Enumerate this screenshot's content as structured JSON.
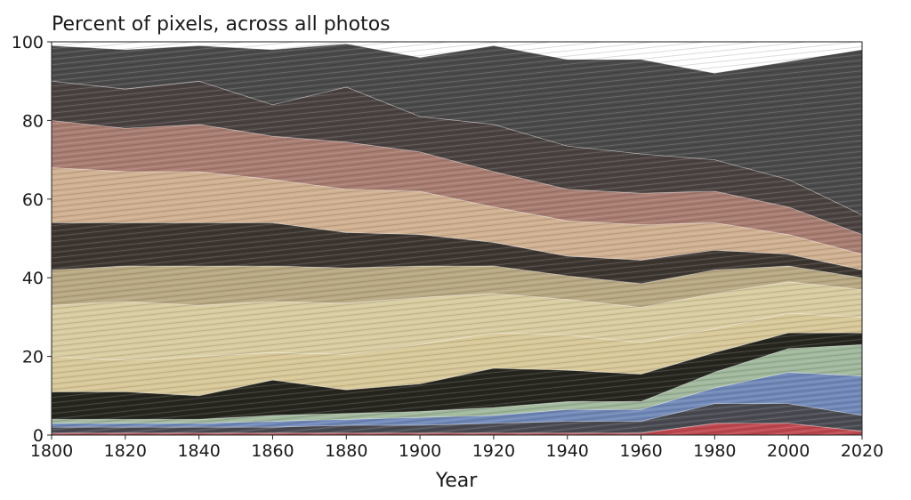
{
  "chart_data": {
    "type": "area",
    "title": "Percent of pixels, across all photos",
    "xlabel": "Year",
    "ylabel": "",
    "xlim": [
      1800,
      2020
    ],
    "ylim": [
      0,
      100
    ],
    "x": [
      1800,
      1820,
      1840,
      1860,
      1880,
      1900,
      1920,
      1940,
      1960,
      1980,
      2000,
      2020
    ],
    "xticks": [
      "1800",
      "1820",
      "1840",
      "1860",
      "1880",
      "1900",
      "1920",
      "1940",
      "1960",
      "1980",
      "2000",
      "2020"
    ],
    "yticks": [
      "0",
      "20",
      "40",
      "60",
      "80",
      "100"
    ],
    "grid": false,
    "legend": "none",
    "series": [
      {
        "color": "#c04850",
        "values": [
          0.5,
          0.5,
          0.5,
          0.5,
          0.5,
          0.5,
          0.5,
          0.5,
          0.5,
          3,
          3,
          1
        ]
      },
      {
        "color": "#4a4a52",
        "values": [
          1.5,
          1.5,
          1.5,
          1.5,
          2,
          2,
          2.5,
          3,
          3,
          5,
          5,
          4
        ]
      },
      {
        "color": "#7088b8",
        "values": [
          1,
          1,
          1,
          1.5,
          1.5,
          2,
          2,
          3,
          3,
          4,
          8,
          10
        ]
      },
      {
        "color": "#a0b89c",
        "values": [
          1,
          1,
          1,
          1.5,
          1.5,
          1.5,
          2,
          2,
          2,
          4,
          6,
          8
        ]
      },
      {
        "color": "#26261f",
        "values": [
          7,
          7,
          6,
          9,
          6,
          7,
          10,
          8,
          7,
          5,
          4,
          3
        ]
      },
      {
        "color": "#d8c898",
        "values": [
          9,
          8,
          10,
          7,
          9,
          10,
          9,
          9,
          8,
          6,
          5,
          4
        ]
      },
      {
        "color": "#d8cca0",
        "values": [
          13,
          15,
          13,
          13,
          13,
          12,
          10,
          9,
          9,
          9,
          8,
          7
        ]
      },
      {
        "color": "#b8a882",
        "values": [
          9,
          9,
          10,
          9,
          9,
          8,
          7,
          6,
          6,
          6,
          4,
          3
        ]
      },
      {
        "color": "#3c3530",
        "values": [
          12,
          11,
          11,
          11,
          9,
          8,
          6,
          5,
          6,
          5,
          3,
          2
        ]
      },
      {
        "color": "#d0b090",
        "values": [
          14,
          13,
          13,
          11,
          11,
          11,
          9,
          9,
          9,
          7,
          5,
          4
        ]
      },
      {
        "color": "#a87c70",
        "values": [
          12,
          11,
          12,
          11,
          12,
          10,
          9,
          8,
          8,
          8,
          7,
          5
        ]
      },
      {
        "color": "#4a4240",
        "values": [
          10,
          10,
          11,
          8,
          14,
          9,
          12,
          11,
          10,
          8,
          7,
          5
        ]
      },
      {
        "color": "#4a4a4a",
        "values": [
          9,
          10,
          9,
          14,
          11,
          15,
          20,
          22,
          24,
          22,
          30,
          42
        ]
      }
    ]
  }
}
